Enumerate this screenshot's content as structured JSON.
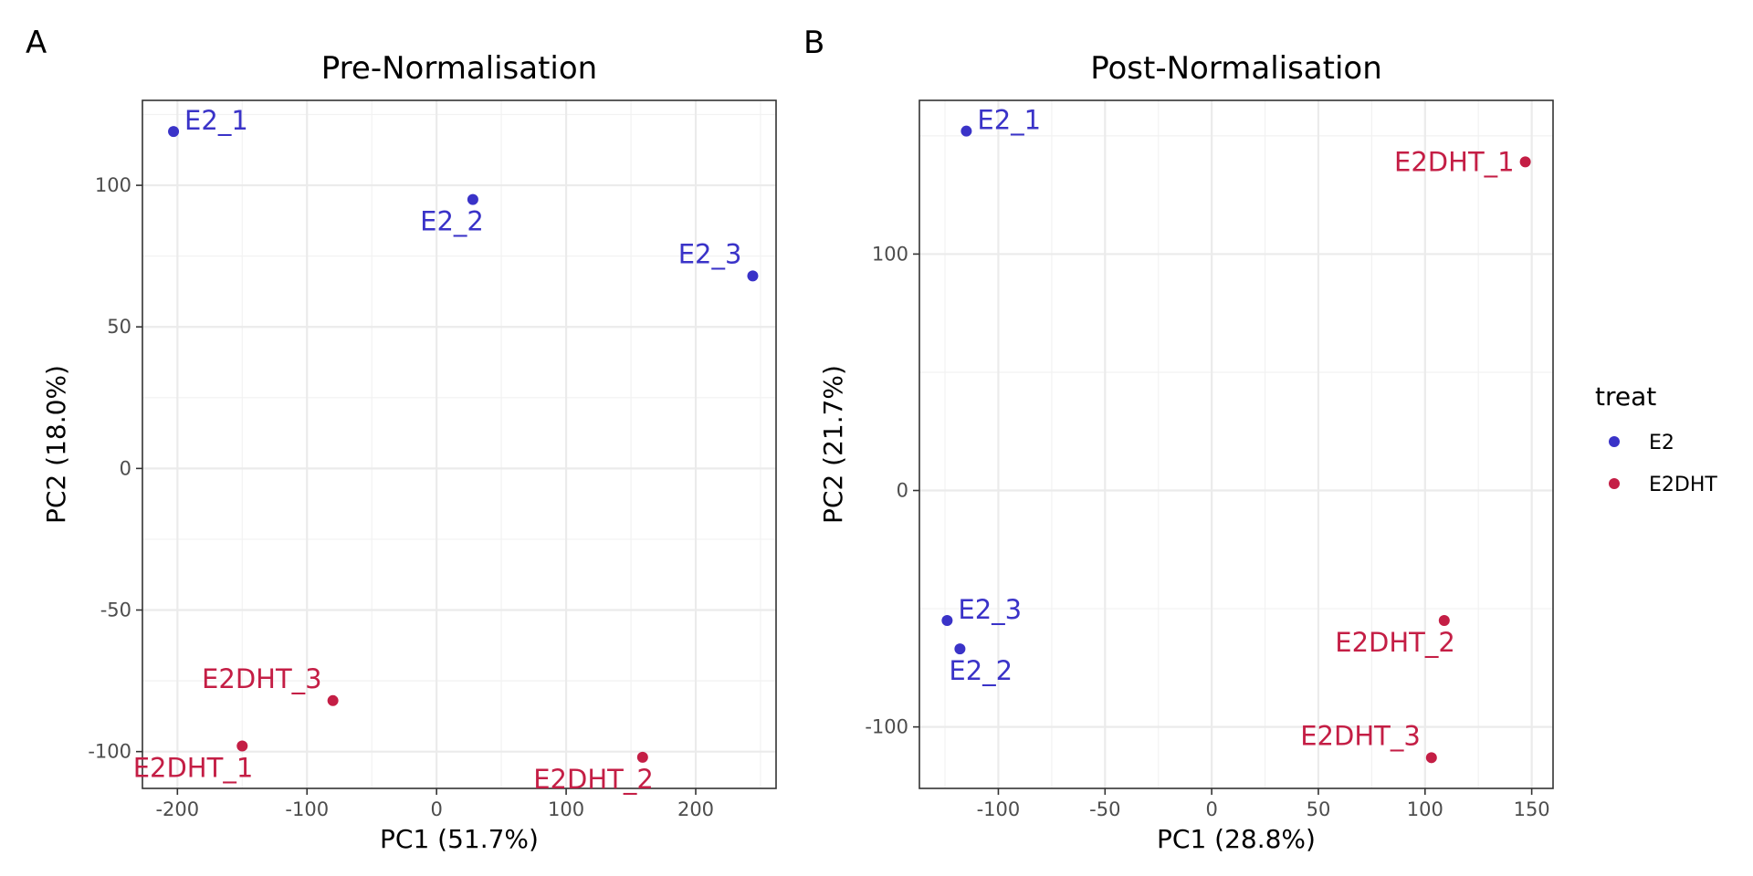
{
  "chart_data": [
    {
      "type": "scatter",
      "panel_label": "A",
      "title": "Pre-Normalisation",
      "xlabel": "PC1 (51.7%)",
      "ylabel": "PC2 (18.0%)",
      "xlim": [
        -227,
        262
      ],
      "ylim": [
        -113,
        130
      ],
      "xticks": [
        -200,
        -100,
        0,
        100,
        200
      ],
      "yticks": [
        -100,
        -50,
        0,
        50,
        100
      ],
      "xticklabels": [
        "-200",
        "-100",
        "0",
        "100",
        "200"
      ],
      "yticklabels": [
        "-100",
        "-50",
        "0",
        "50",
        "100"
      ],
      "grid": true,
      "points": [
        {
          "label": "E2_1",
          "group": "E2",
          "x": -203,
          "y": 119,
          "label_pos": "upper-right"
        },
        {
          "label": "E2_2",
          "group": "E2",
          "x": 28,
          "y": 95,
          "label_pos": "lower-left"
        },
        {
          "label": "E2_3",
          "group": "E2",
          "x": 244,
          "y": 68,
          "label_pos": "upper-left"
        },
        {
          "label": "E2DHT_1",
          "group": "E2DHT",
          "x": -150,
          "y": -98,
          "label_pos": "lower-left"
        },
        {
          "label": "E2DHT_2",
          "group": "E2DHT",
          "x": 159,
          "y": -102,
          "label_pos": "lower-left"
        },
        {
          "label": "E2DHT_3",
          "group": "E2DHT",
          "x": -80,
          "y": -82,
          "label_pos": "upper-left"
        }
      ]
    },
    {
      "type": "scatter",
      "panel_label": "B",
      "title": "Post-Normalisation",
      "xlabel": "PC1 (28.8%)",
      "ylabel": "PC2 (21.7%)",
      "xlim": [
        -137,
        160
      ],
      "ylim": [
        -126,
        165
      ],
      "xticks": [
        -100,
        -50,
        0,
        50,
        100,
        150
      ],
      "yticks": [
        -100,
        0,
        100
      ],
      "xticklabels": [
        "-100",
        "-50",
        "0",
        "50",
        "100",
        "150"
      ],
      "yticklabels": [
        "-100",
        "0",
        "100"
      ],
      "grid": true,
      "points": [
        {
          "label": "E2_1",
          "group": "E2",
          "x": -115,
          "y": 152,
          "label_pos": "upper-right"
        },
        {
          "label": "E2_2",
          "group": "E2",
          "x": -118,
          "y": -67,
          "label_pos": "lower-right"
        },
        {
          "label": "E2_3",
          "group": "E2",
          "x": -124,
          "y": -55,
          "label_pos": "upper-right"
        },
        {
          "label": "E2DHT_1",
          "group": "E2DHT",
          "x": 147,
          "y": 139,
          "label_pos": "left"
        },
        {
          "label": "E2DHT_2",
          "group": "E2DHT",
          "x": 109,
          "y": -55,
          "label_pos": "lower-left"
        },
        {
          "label": "E2DHT_3",
          "group": "E2DHT",
          "x": 103,
          "y": -113,
          "label_pos": "upper-left"
        }
      ]
    }
  ],
  "legend": {
    "title": "treat",
    "placement": "right",
    "items": [
      {
        "name": "E2",
        "color": "#3a33c8"
      },
      {
        "name": "E2DHT",
        "color": "#c41e45"
      }
    ]
  }
}
